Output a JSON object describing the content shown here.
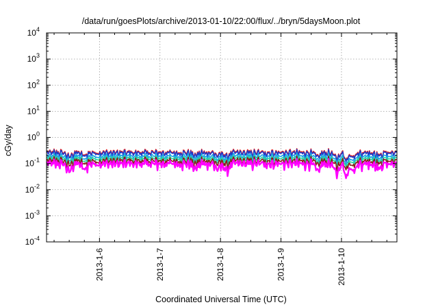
{
  "chart_data": {
    "type": "line",
    "title": "/data/run/goesPlots/archive/2013-01-10/22:00/flux/../bryn/5daysMoon.plot",
    "xlabel": "Coordinated Universal Time (UTC)",
    "ylabel": "cGy/day",
    "x_tick_labels": [
      "2013-1-6",
      "2013-1-7",
      "2013-1-8",
      "2013-1-9",
      "2013-1-10"
    ],
    "x_tick_dates": [
      "2013-01-06",
      "2013-01-07",
      "2013-01-08",
      "2013-01-09",
      "2013-01-10"
    ],
    "xlim": [
      "2013-01-05 03:00",
      "2013-01-10 22:00"
    ],
    "y_scale": "log",
    "ylim": [
      0.0001,
      10000
    ],
    "y_ticks": [
      {
        "base": "10",
        "exp": "-4",
        "value": 0.0001
      },
      {
        "base": "10",
        "exp": "-3",
        "value": 0.001
      },
      {
        "base": "10",
        "exp": "-2",
        "value": 0.01
      },
      {
        "base": "10",
        "exp": "-1",
        "value": 0.1
      },
      {
        "base": "10",
        "exp": "0",
        "value": 1
      },
      {
        "base": "10",
        "exp": "1",
        "value": 10
      },
      {
        "base": "10",
        "exp": "2",
        "value": 100
      },
      {
        "base": "10",
        "exp": "3",
        "value": 1000
      },
      {
        "base": "10",
        "exp": "4",
        "value": 10000
      }
    ],
    "grid": true,
    "legend": "none",
    "series": [
      {
        "color": "#e41a1c",
        "baseline": 0.27
      },
      {
        "color": "#1f3ac8",
        "baseline": 0.25
      },
      {
        "color": "#1aa3e8",
        "baseline": 0.19
      },
      {
        "color": "#2bd6a0",
        "baseline": 0.155
      },
      {
        "color": "#8b1a1a",
        "baseline": 0.125
      },
      {
        "color": "#ff00ff",
        "baseline": 0.098
      }
    ],
    "dips": [
      {
        "date": "2013-01-05 12:00",
        "factor": 0.45
      },
      {
        "date": "2013-01-05 18:00",
        "factor": 0.55
      },
      {
        "date": "2013-01-07 14:00",
        "factor": 0.6
      },
      {
        "date": "2013-01-07 23:00",
        "factor": 0.55
      },
      {
        "date": "2013-01-08 02:30",
        "factor": 0.5
      },
      {
        "date": "2013-01-09 14:30",
        "factor": 0.45
      },
      {
        "date": "2013-01-09 22:00",
        "factor": 0.35
      },
      {
        "date": "2013-01-10 02:00",
        "factor": 0.28
      },
      {
        "date": "2013-01-10 05:00",
        "factor": 0.55
      },
      {
        "date": "2013-01-10 15:00",
        "factor": 0.6
      }
    ]
  }
}
